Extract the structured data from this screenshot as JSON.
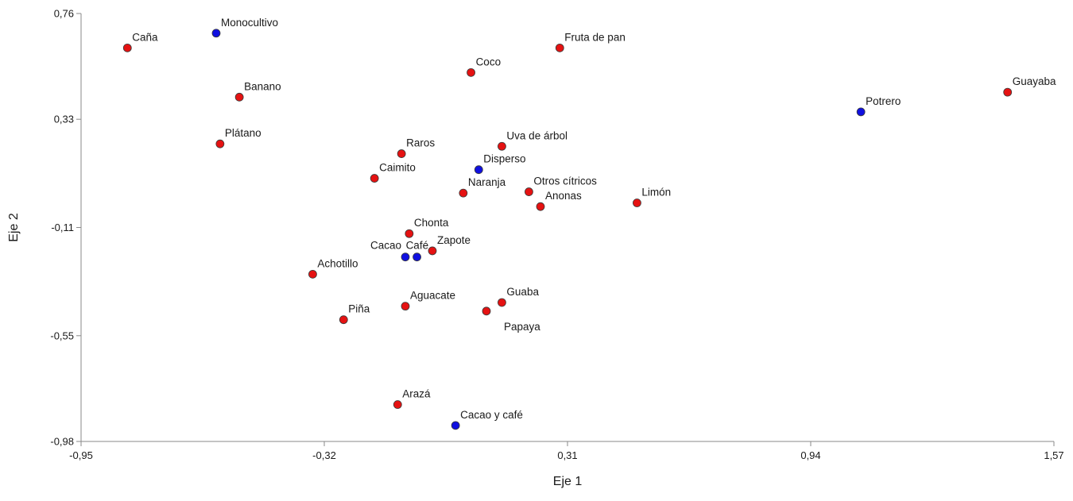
{
  "chart_data": {
    "type": "scatter",
    "xlabel": "Eje 1",
    "ylabel": "Eje 2",
    "xlim": [
      -0.95,
      1.57
    ],
    "ylim": [
      -0.98,
      0.76
    ],
    "x_ticks": [
      -0.95,
      -0.32,
      0.31,
      0.94,
      1.57
    ],
    "y_ticks": [
      0.76,
      0.33,
      -0.11,
      -0.55,
      -0.98
    ],
    "x_tick_labels": [
      "-0,95",
      "-0,32",
      "0,31",
      "0,94",
      "1,57"
    ],
    "y_tick_labels": [
      "0,76",
      "0,33",
      "-0,11",
      "-0,55",
      "-0,98"
    ],
    "grid": false,
    "colors": {
      "species": "#e51212",
      "systems": "#1010e0"
    },
    "series": [
      {
        "group": "species",
        "color": "#e51212",
        "points": [
          {
            "label": "Caña",
            "x": -0.83,
            "y": 0.62
          },
          {
            "label": "Banano",
            "x": -0.54,
            "y": 0.42
          },
          {
            "label": "Plátano",
            "x": -0.59,
            "y": 0.23
          },
          {
            "label": "Fruta de pan",
            "x": 0.29,
            "y": 0.62
          },
          {
            "label": "Coco",
            "x": 0.06,
            "y": 0.52
          },
          {
            "label": "Guayaba",
            "x": 1.45,
            "y": 0.44
          },
          {
            "label": "Raros",
            "x": -0.12,
            "y": 0.19
          },
          {
            "label": "Uva de árbol",
            "x": 0.14,
            "y": 0.22
          },
          {
            "label": "Caimito",
            "x": -0.19,
            "y": 0.09
          },
          {
            "label": "Naranja",
            "x": 0.04,
            "y": 0.03
          },
          {
            "label": "Otros cítricos",
            "x": 0.21,
            "y": 0.035
          },
          {
            "label": "Anonas",
            "x": 0.24,
            "y": -0.025
          },
          {
            "label": "Limón",
            "x": 0.49,
            "y": -0.01
          },
          {
            "label": "Chonta",
            "x": -0.1,
            "y": -0.135
          },
          {
            "label": "Zapote",
            "x": -0.04,
            "y": -0.205
          },
          {
            "label": "Achotillo",
            "x": -0.35,
            "y": -0.3
          },
          {
            "label": "Aguacate",
            "x": -0.11,
            "y": -0.43
          },
          {
            "label": "Guaba",
            "x": 0.14,
            "y": -0.415
          },
          {
            "label": "Papaya",
            "x": 0.1,
            "y": -0.45
          },
          {
            "label": "Piña",
            "x": -0.27,
            "y": -0.485
          },
          {
            "label": "Arazá",
            "x": -0.13,
            "y": -0.83
          }
        ]
      },
      {
        "group": "systems",
        "color": "#1010e0",
        "points": [
          {
            "label": "Monocultivo",
            "x": -0.6,
            "y": 0.68
          },
          {
            "label": "Potrero",
            "x": 1.07,
            "y": 0.36
          },
          {
            "label": "Disperso",
            "x": 0.08,
            "y": 0.125
          },
          {
            "label": "Cacao",
            "x": -0.11,
            "y": -0.23
          },
          {
            "label": "Café",
            "x": -0.08,
            "y": -0.23
          },
          {
            "label": "Cacao y café",
            "x": 0.02,
            "y": -0.915
          }
        ]
      }
    ]
  }
}
